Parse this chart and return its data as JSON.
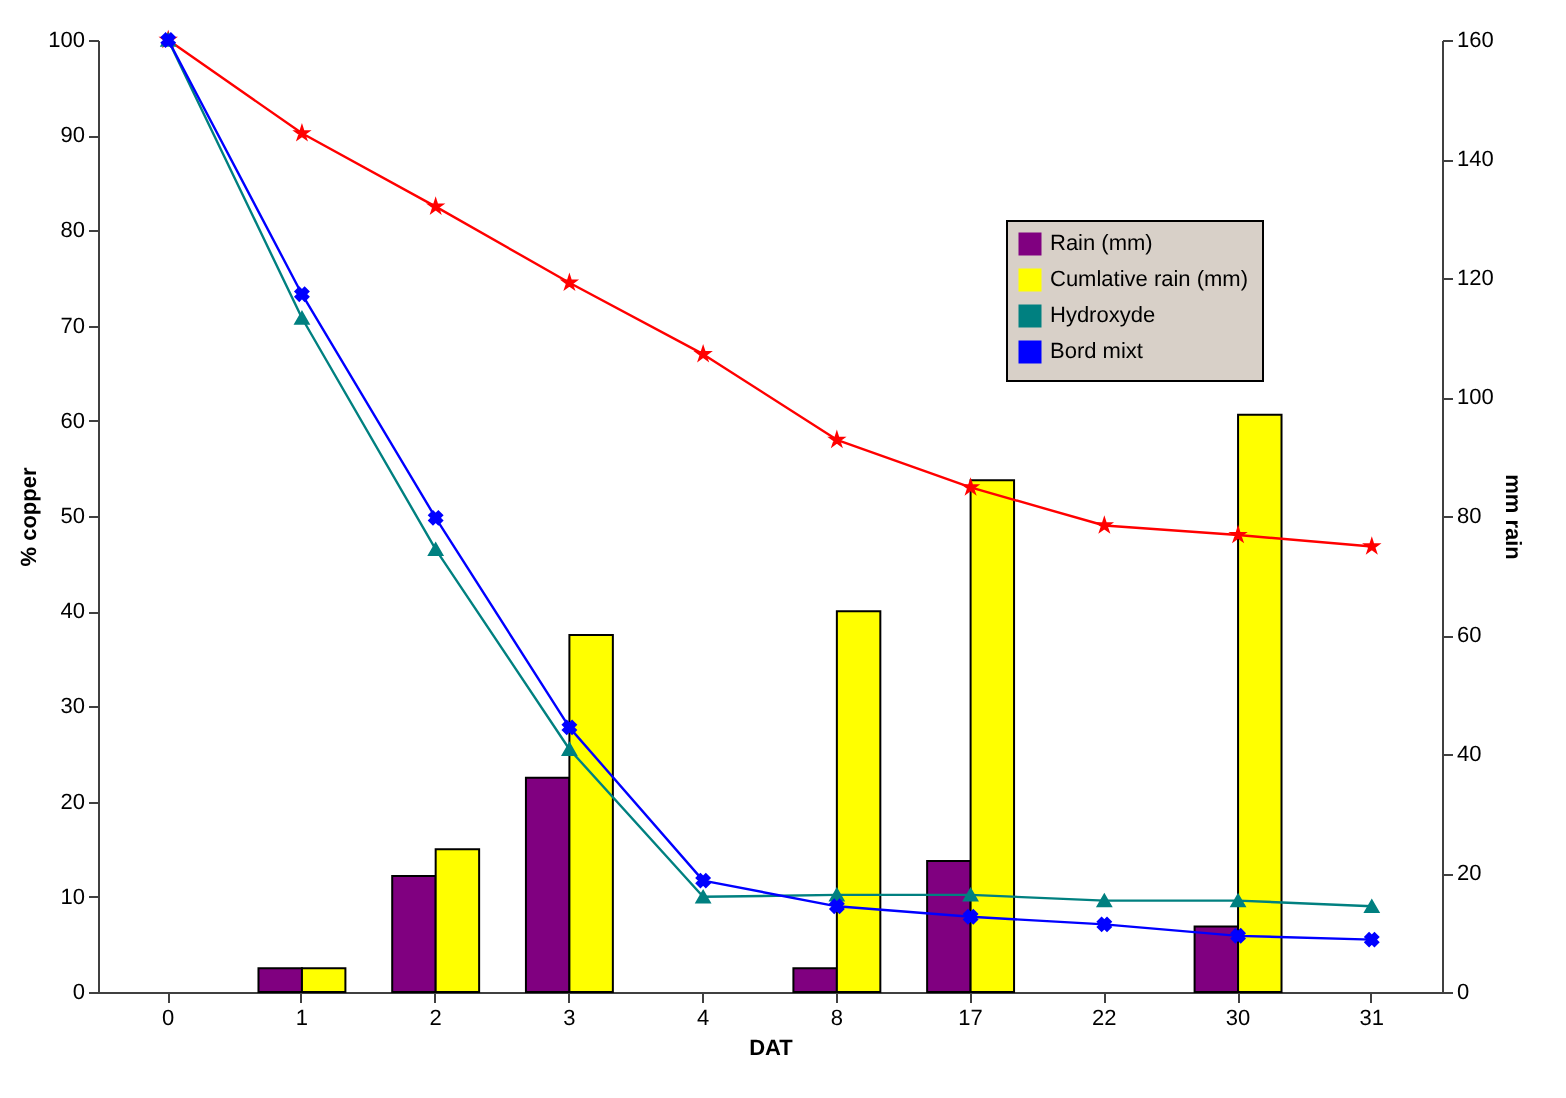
{
  "chart_data": {
    "type": "line",
    "xlabel": "DAT",
    "ylabel": "% copper",
    "y2label": "mm rain",
    "categories": [
      "0",
      "1",
      "2",
      "3",
      "4",
      "8",
      "17",
      "22",
      "30",
      "31"
    ],
    "ylim": [
      0,
      100
    ],
    "yticks": [
      0,
      10,
      20,
      30,
      40,
      50,
      60,
      70,
      80,
      90,
      100
    ],
    "y2lim": [
      0,
      160
    ],
    "y2ticks": [
      0,
      20,
      40,
      60,
      80,
      100,
      120,
      140,
      160
    ],
    "legend": "top right",
    "grid": false,
    "series": [
      {
        "name": "Rain (mm)",
        "type": "bar",
        "axis": "y2",
        "color": "#800080",
        "values": [
          null,
          4,
          19.5,
          36,
          null,
          4,
          22,
          null,
          11,
          null
        ]
      },
      {
        "name": "Cumlative rain (mm)",
        "type": "bar",
        "axis": "y2",
        "color": "#ffff00",
        "values": [
          null,
          4,
          24,
          60,
          null,
          64,
          86,
          null,
          97,
          null
        ]
      },
      {
        "color": "#ff0000",
        "marker": "star",
        "values": [
          100,
          90.2,
          82.5,
          74.5,
          67,
          58,
          53,
          49,
          48,
          46.8
        ]
      },
      {
        "name": "Hydroxyde",
        "color": "#008080",
        "marker": "triangle",
        "values": [
          100,
          70.8,
          46.5,
          25.5,
          10,
          10.2,
          10.2,
          9.6,
          9.6,
          9.0
        ]
      },
      {
        "name": "Bord mixt",
        "color": "#0000ff",
        "marker": "cross",
        "values": [
          100,
          73.3,
          49.8,
          27.8,
          11.7,
          9.0,
          7.9,
          7.1,
          5.9,
          5.5
        ]
      }
    ]
  }
}
